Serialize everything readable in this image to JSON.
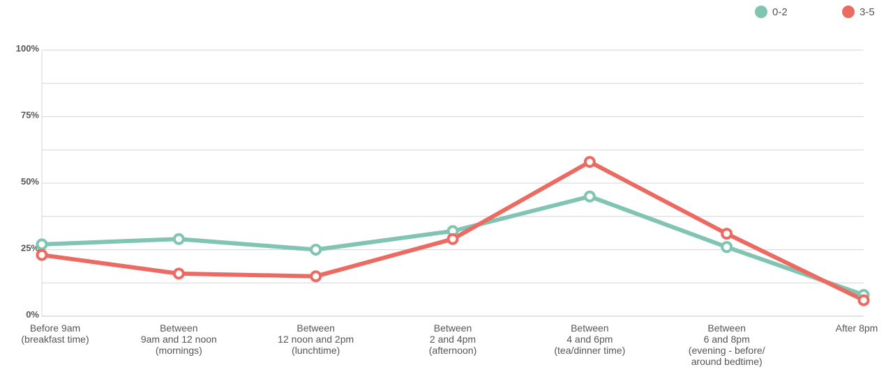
{
  "chart_data": {
    "type": "line",
    "categories": [
      [
        "Before 9am",
        "(breakfast time)"
      ],
      [
        "Between",
        "9am and 12 noon",
        "(mornings)"
      ],
      [
        "Between",
        "12 noon and 2pm",
        "(lunchtime)"
      ],
      [
        "Between",
        "2 and 4pm",
        "(afternoon)"
      ],
      [
        "Between",
        "4 and 6pm",
        "(tea/dinner time)"
      ],
      [
        "Between",
        "6 and 8pm",
        "(evening - before/",
        "around bedtime)"
      ],
      [
        "After 8pm"
      ]
    ],
    "series": [
      {
        "name": "0-2",
        "color": "#80C4B1",
        "values": [
          27,
          29,
          25,
          32,
          45,
          26,
          8
        ]
      },
      {
        "name": "3-5",
        "color": "#EB6B63",
        "values": [
          23,
          16,
          15,
          29,
          58,
          31,
          6
        ]
      }
    ],
    "ylim": [
      0,
      100
    ],
    "yticks": [
      0,
      25,
      50,
      75,
      100
    ],
    "ytick_labels": [
      "0%",
      "25%",
      "50%",
      "75%",
      "100%"
    ],
    "grid": true,
    "legend_position": "top-right",
    "title": "",
    "xlabel": "",
    "ylabel": ""
  }
}
